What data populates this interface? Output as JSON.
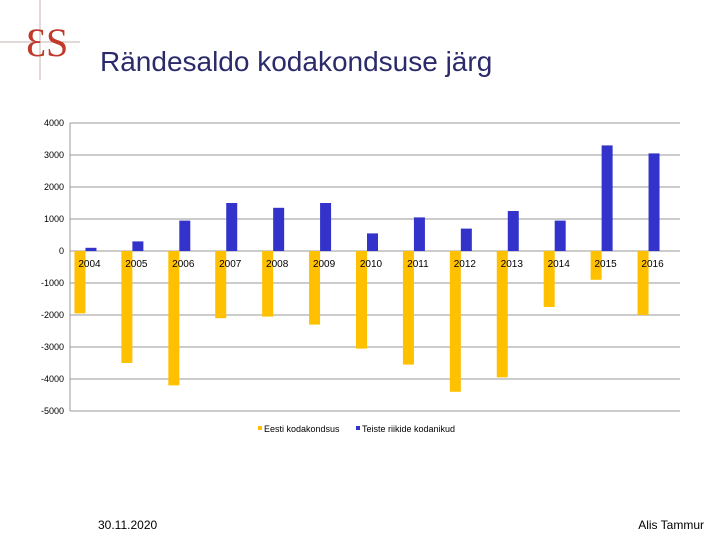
{
  "slide": {
    "logo_text": "ES",
    "date": "30.11.2020",
    "author": "Alis Tammur"
  },
  "chart_data": {
    "type": "bar",
    "title": "Rändesaldo kodakondsuse järg",
    "categories": [
      "2004",
      "2005",
      "2006",
      "2007",
      "2008",
      "2009",
      "2010",
      "2011",
      "2012",
      "2013",
      "2014",
      "2015",
      "2016"
    ],
    "series": [
      {
        "name": "Eesti kodakondsus",
        "color": "#FFC000",
        "values": [
          -1950,
          -3500,
          -4200,
          -2100,
          -2050,
          -2300,
          -3050,
          -3550,
          -4400,
          -3950,
          -1750,
          -900,
          -2000
        ]
      },
      {
        "name": "Teiste riikide kodanikud",
        "color": "#3333CC",
        "values": [
          100,
          300,
          950,
          1500,
          1350,
          1500,
          550,
          1050,
          700,
          1250,
          950,
          3300,
          3050
        ]
      }
    ],
    "ylim": [
      -5000,
      4000
    ],
    "yticks": [
      "4000",
      "3000",
      "2000",
      "1000",
      "0",
      "-1000",
      "-2000",
      "-3000",
      "-4000",
      "-5000"
    ],
    "ytick_values": [
      4000,
      3000,
      2000,
      1000,
      0,
      -1000,
      -2000,
      -3000,
      -4000,
      -5000
    ],
    "grid": true,
    "legend_position": "bottom"
  }
}
